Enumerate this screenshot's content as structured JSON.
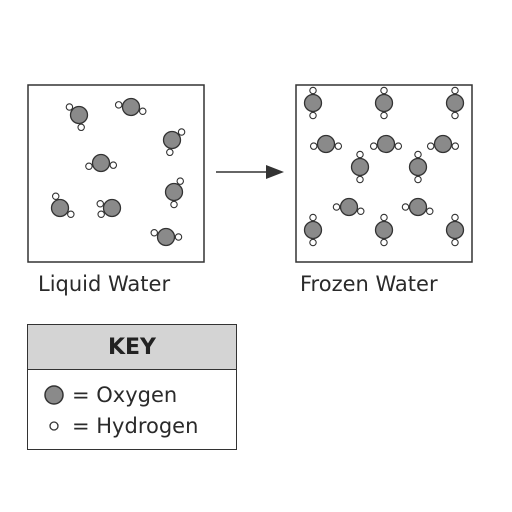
{
  "labels": {
    "liquid": "Liquid Water",
    "frozen": "Frozen Water"
  },
  "key": {
    "title": "KEY",
    "oxygen": "= Oxygen",
    "hydrogen": "= Hydrogen"
  },
  "colors": {
    "oxygen": "#8a8a8a",
    "hydrogen": "#ffffff",
    "outline": "#333333",
    "key_header": "#d4d4d4"
  },
  "icons": [
    "oxygen-atom-icon",
    "hydrogen-atom-icon",
    "right-arrow-icon"
  ]
}
